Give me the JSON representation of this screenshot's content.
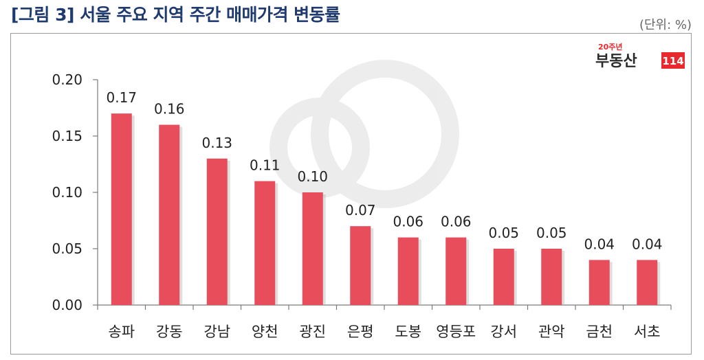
{
  "header": {
    "title": "[그림 3] 서울 주요 지역 주간 매매가격 변동률",
    "unit": "(단위: %)"
  },
  "logo": {
    "badge": "20주년",
    "name": "부동산",
    "number": "114",
    "brand_color": "#e8292e"
  },
  "chart_data": {
    "type": "bar",
    "categories": [
      "송파",
      "강동",
      "강남",
      "양천",
      "광진",
      "은평",
      "도봉",
      "영등포",
      "강서",
      "관악",
      "금천",
      "서초"
    ],
    "values": [
      0.17,
      0.16,
      0.13,
      0.11,
      0.1,
      0.07,
      0.06,
      0.06,
      0.05,
      0.05,
      0.04,
      0.04
    ],
    "value_labels": [
      "0.17",
      "0.16",
      "0.13",
      "0.11",
      "0.10",
      "0.07",
      "0.06",
      "0.06",
      "0.05",
      "0.05",
      "0.04",
      "0.04"
    ],
    "yticks": [
      "0.00",
      "0.05",
      "0.10",
      "0.15",
      "0.20"
    ],
    "ylim": [
      0,
      0.2
    ],
    "grid": false,
    "bar_color": "#e84d5c",
    "title": "",
    "xlabel": "",
    "ylabel": ""
  }
}
